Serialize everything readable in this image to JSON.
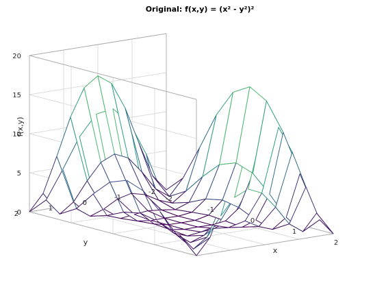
{
  "chart_data": {
    "type": "surface-mesh",
    "title": "Original: f(x,y) = (x² - y²)²",
    "xlabel": "x",
    "ylabel": "y",
    "zlabel": "f(x,y)",
    "xlim": [
      -2,
      2
    ],
    "ylim": [
      -2,
      2
    ],
    "zlim": [
      0,
      20
    ],
    "x_ticks": [
      "-2",
      "-1",
      "0",
      "1",
      "2"
    ],
    "y_ticks": [
      "-2",
      "-1",
      "0",
      "1",
      "2"
    ],
    "z_ticks": [
      "0",
      "5",
      "10",
      "15",
      "20"
    ],
    "grid": true,
    "colormap": [
      "#440154",
      "#3b528b",
      "#21918c",
      "#5ec962",
      "#fde725"
    ],
    "x": [
      -2.0,
      -1.6,
      -1.2,
      -0.8,
      -0.4,
      0.0,
      0.4,
      0.8,
      1.2,
      1.6,
      2.0
    ],
    "y": [
      -2.0,
      -1.6,
      -1.2,
      -0.8,
      -0.4,
      0.0,
      0.4,
      0.8,
      1.2,
      1.6,
      2.0
    ],
    "z_formula": "(x^2 - y^2)^2"
  }
}
